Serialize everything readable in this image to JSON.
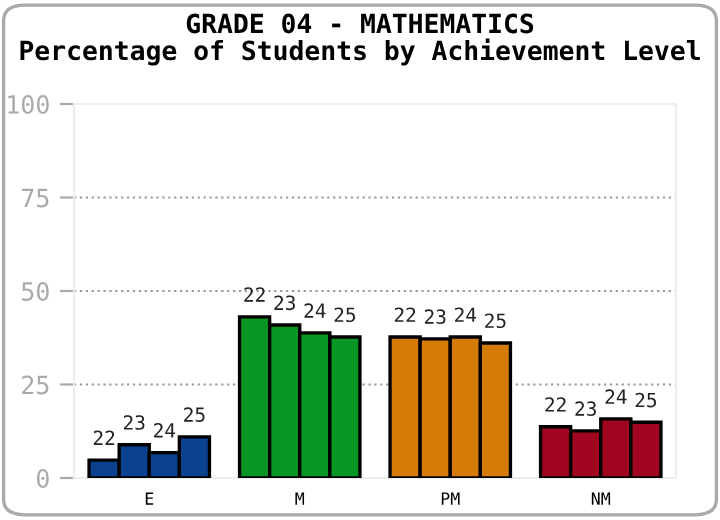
{
  "chart_data": {
    "type": "bar",
    "title": "GRADE 04 - MATHEMATICS\nPercentage of Students by Achievement Level",
    "categories": [
      "E",
      "M",
      "PM",
      "NM"
    ],
    "series": [
      {
        "name": "22",
        "colors": [
          "#0b4290",
          "#0a9624",
          "#d57b08",
          "#a0061f"
        ],
        "values": [
          4.8,
          43.1,
          37.7,
          13.7
        ]
      },
      {
        "name": "23",
        "colors": [
          "#0b4290",
          "#0a9624",
          "#d57b08",
          "#a0061f"
        ],
        "values": [
          8.9,
          40.9,
          37.2,
          12.6
        ]
      },
      {
        "name": "24",
        "colors": [
          "#0b4290",
          "#0a9624",
          "#d57b08",
          "#a0061f"
        ],
        "values": [
          6.8,
          38.8,
          37.7,
          15.8
        ]
      },
      {
        "name": "25",
        "colors": [
          "#0b4290",
          "#0a9624",
          "#d57b08",
          "#a0061f"
        ],
        "values": [
          11.0,
          37.7,
          36.1,
          14.9
        ]
      }
    ],
    "ylim": [
      0,
      100
    ],
    "yticks": [
      0,
      25,
      50,
      75,
      100
    ],
    "grid": "y"
  }
}
